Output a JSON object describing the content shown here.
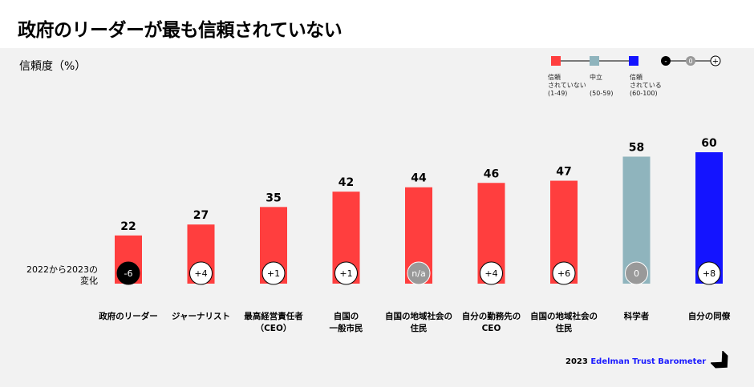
{
  "title": "政府のリーダーが最も信頼されていない",
  "subtitle": "信頼度（%）",
  "legend": {
    "items": [
      {
        "label": "信頼\nされていない\n(1-49)",
        "color": "#ff3e3e"
      },
      {
        "label": "中立\n\n(50-59)",
        "color": "#8fb4bd"
      },
      {
        "label": "信頼\nされている\n(60-100)",
        "color": "#1414ff"
      }
    ],
    "change_symbols": [
      "-",
      "0",
      "+"
    ]
  },
  "change_row_label": "2022から2023の\n変化",
  "chart_data": {
    "type": "bar",
    "title": "政府のリーダーが最も信頼されていない",
    "ylabel": "信頼度（%）",
    "ylim": [
      0,
      70
    ],
    "categories": [
      "政府のリーダー",
      "ジャーナリスト",
      "最高経営責任者\n（CEO）",
      "自国の\n一般市民",
      "自国の地域社会の\n住民",
      "自分の勤務先の\nCEO",
      "自国の地域社会の\n住民",
      "科学者",
      "自分の同僚"
    ],
    "values": [
      22,
      27,
      35,
      42,
      44,
      46,
      47,
      58,
      60
    ],
    "changes": [
      "-6",
      "+4",
      "+1",
      "+1",
      "n/a",
      "+4",
      "+6",
      "0",
      "+8"
    ],
    "bar_colors": [
      "#ff3e3e",
      "#ff3e3e",
      "#ff3e3e",
      "#ff3e3e",
      "#ff3e3e",
      "#ff3e3e",
      "#ff3e3e",
      "#8fb4bd",
      "#1414ff"
    ]
  },
  "footer": {
    "year": "2023",
    "brand": "Edelman Trust Barometer"
  }
}
